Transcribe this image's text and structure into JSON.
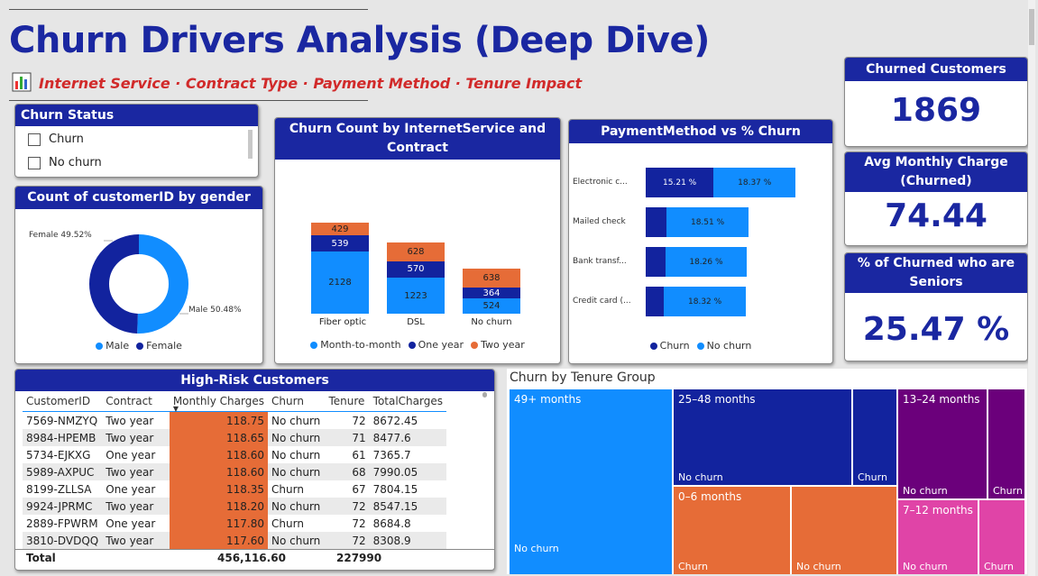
{
  "title": "Churn Drivers Analysis (Deep Dive)",
  "subtitle": "Internet Service · Contract Type · Payment Method · Tenure Impact",
  "churn_status": {
    "title": "Churn Status",
    "options": [
      "Churn",
      "No churn"
    ]
  },
  "gender_card": {
    "title": "Count of customerID by gender",
    "female_label": "Female 49.52%",
    "male_label": "Male 50.48%",
    "legend": [
      "Male",
      "Female"
    ],
    "colors": {
      "male": "#118dff",
      "female": "#12239e"
    }
  },
  "internet_card": {
    "title": "Churn Count by InternetService and Contract",
    "categories": [
      "Fiber optic",
      "DSL",
      "No churn"
    ],
    "legend": [
      "Month-to-month",
      "One year",
      "Two year"
    ],
    "colors": {
      "month": "#118dff",
      "one": "#12239e",
      "two": "#e66c37"
    }
  },
  "payment_card": {
    "title": "PaymentMethod vs % Churn",
    "legend": [
      "Churn",
      "No churn"
    ],
    "rows": [
      {
        "label": "Electronic c...",
        "churn_label": "15.21 %",
        "nochurn_label": "18.37 %"
      },
      {
        "label": "Mailed check",
        "churn_label": "",
        "nochurn_label": "18.51 %"
      },
      {
        "label": "Bank transf...",
        "churn_label": "",
        "nochurn_label": "18.26 %"
      },
      {
        "label": "Credit card (...",
        "churn_label": "",
        "nochurn_label": "18.32 %"
      }
    ]
  },
  "kpis": [
    {
      "title": "Churned Customers",
      "value": "1869"
    },
    {
      "title": "Avg Monthly Charge (Churned)",
      "value": "74.44"
    },
    {
      "title": "% of Churned who are Seniors",
      "value": "25.47 %"
    }
  ],
  "high_risk": {
    "title": "High-Risk Customers",
    "columns": [
      "CustomerID",
      "Contract",
      "Monthly Charges",
      "Churn",
      "Tenure",
      "TotalCharges"
    ],
    "rows": [
      [
        "7569-NMZYQ",
        "Two year",
        "118.75",
        "No churn",
        "72",
        "8672.45"
      ],
      [
        "8984-HPEMB",
        "Two year",
        "118.65",
        "No churn",
        "71",
        "8477.6"
      ],
      [
        "5734-EJKXG",
        "One year",
        "118.60",
        "No churn",
        "61",
        "7365.7"
      ],
      [
        "5989-AXPUC",
        "Two year",
        "118.60",
        "No churn",
        "68",
        "7990.05"
      ],
      [
        "8199-ZLLSA",
        "One year",
        "118.35",
        "Churn",
        "67",
        "7804.15"
      ],
      [
        "9924-JPRMC",
        "Two year",
        "118.20",
        "No churn",
        "72",
        "8547.15"
      ],
      [
        "2889-FPWRM",
        "One year",
        "117.80",
        "Churn",
        "72",
        "8684.8"
      ],
      [
        "3810-DVDQQ",
        "Two year",
        "117.60",
        "No churn",
        "72",
        "8308.9"
      ]
    ],
    "total": {
      "label": "Total",
      "monthly": "456,116.60",
      "tenure": "227990"
    }
  },
  "tenure": {
    "title": "Churn by Tenure Group",
    "groups": [
      "49+ months",
      "25–48 months",
      "13–24 months",
      "0–6 months",
      "7–12 months"
    ],
    "no_churn": "No churn",
    "churn": "Churn"
  },
  "chart_data": [
    {
      "type": "pie",
      "title": "Count of customerID by gender",
      "categories": [
        "Male",
        "Female"
      ],
      "values": [
        50.48,
        49.52
      ]
    },
    {
      "type": "bar",
      "title": "Churn Count by InternetService and Contract",
      "categories": [
        "Fiber optic",
        "DSL",
        "No churn"
      ],
      "series": [
        {
          "name": "Month-to-month",
          "values": [
            2128,
            1223,
            524
          ]
        },
        {
          "name": "One year",
          "values": [
            539,
            570,
            364
          ]
        },
        {
          "name": "Two year",
          "values": [
            429,
            628,
            638
          ]
        }
      ]
    },
    {
      "type": "bar",
      "title": "PaymentMethod vs % Churn",
      "categories": [
        "Electronic c...",
        "Mailed check",
        "Bank transf...",
        "Credit card (..."
      ],
      "series": [
        {
          "name": "Churn",
          "values": [
            15.21,
            4.6,
            4.4,
            4.1
          ]
        },
        {
          "name": "No churn",
          "values": [
            18.37,
            18.51,
            18.26,
            18.32
          ]
        }
      ]
    }
  ]
}
